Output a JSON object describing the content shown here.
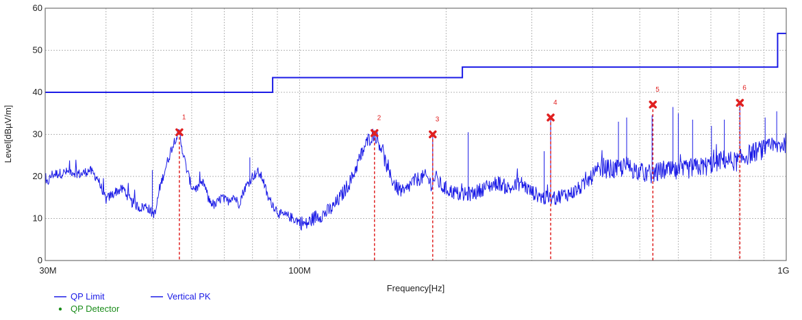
{
  "chart_data": {
    "type": "line",
    "xlabel": "Frequency[Hz]",
    "ylabel": "Level[dBµV/m]",
    "x_scale": "log",
    "xlim": [
      30000000,
      1000000000
    ],
    "ylim": [
      0,
      60
    ],
    "grid": true,
    "x_ticks": [
      {
        "value": 30000000,
        "label": "30M"
      },
      {
        "value": 100000000,
        "label": "100M"
      },
      {
        "value": 1000000000,
        "label": "1G"
      }
    ],
    "y_ticks": [
      {
        "value": 0,
        "label": "0"
      },
      {
        "value": 10,
        "label": "10"
      },
      {
        "value": 20,
        "label": "20"
      },
      {
        "value": 30,
        "label": "30"
      },
      {
        "value": 40,
        "label": "40"
      },
      {
        "value": 50,
        "label": "50"
      },
      {
        "value": 60,
        "label": "60"
      }
    ],
    "limit_line": {
      "name": "QP Limit",
      "color": "#1a1ae6",
      "points": [
        [
          30000000,
          40
        ],
        [
          88000000,
          40
        ],
        [
          88000000,
          43.5
        ],
        [
          216000000,
          43.5
        ],
        [
          216000000,
          46
        ],
        [
          960000000,
          46
        ],
        [
          960000000,
          54
        ],
        [
          1000000000,
          54
        ]
      ]
    },
    "trace": {
      "name": "Vertical PK",
      "color": "#1a1ae6",
      "points": [
        [
          30000000,
          17.5
        ],
        [
          31000000,
          20.5
        ],
        [
          32500000,
          20.8
        ],
        [
          34000000,
          21.2
        ],
        [
          35500000,
          20.5
        ],
        [
          37000000,
          21.5
        ],
        [
          38500000,
          19.5
        ],
        [
          39000000,
          17.5
        ],
        [
          40000000,
          14.5
        ],
        [
          42000000,
          16.5
        ],
        [
          43500000,
          17.0
        ],
        [
          45000000,
          14.0
        ],
        [
          47000000,
          12.5
        ],
        [
          48500000,
          13.0
        ],
        [
          49500000,
          11.5
        ],
        [
          50500000,
          11.0
        ],
        [
          51500000,
          17.0
        ],
        [
          53000000,
          22.0
        ],
        [
          54500000,
          26.5
        ],
        [
          55500000,
          29.0
        ],
        [
          56600000,
          30.5
        ],
        [
          57500000,
          26.0
        ],
        [
          58500000,
          22.0
        ],
        [
          60000000,
          17.5
        ],
        [
          62000000,
          17.0
        ],
        [
          63500000,
          18.5
        ],
        [
          65000000,
          14.5
        ],
        [
          67000000,
          13.0
        ],
        [
          69000000,
          15.0
        ],
        [
          71000000,
          14.0
        ],
        [
          73000000,
          15.5
        ],
        [
          75000000,
          13.5
        ],
        [
          77000000,
          17.0
        ],
        [
          80000000,
          20.0
        ],
        [
          82000000,
          21.0
        ],
        [
          84000000,
          19.5
        ],
        [
          86000000,
          15.0
        ],
        [
          88500000,
          13.0
        ],
        [
          91000000,
          11.0
        ],
        [
          95000000,
          10.5
        ],
        [
          99000000,
          9.5
        ],
        [
          103000000,
          8.5
        ],
        [
          108000000,
          10.5
        ],
        [
          112000000,
          11.0
        ],
        [
          117000000,
          12.5
        ],
        [
          122000000,
          15.5
        ],
        [
          128000000,
          19.5
        ],
        [
          133000000,
          24.5
        ],
        [
          138000000,
          28.5
        ],
        [
          142500000,
          30.3
        ],
        [
          147000000,
          27.0
        ],
        [
          152000000,
          21.0
        ],
        [
          158000000,
          17.5
        ],
        [
          164000000,
          16.0
        ],
        [
          170000000,
          18.5
        ],
        [
          176000000,
          19.5
        ],
        [
          182000000,
          20.0
        ],
        [
          187000000,
          18.0
        ],
        [
          190000000,
          20.0
        ],
        [
          196000000,
          17.5
        ],
        [
          205000000,
          16.5
        ],
        [
          215000000,
          15.5
        ],
        [
          228000000,
          16.0
        ],
        [
          242000000,
          17.5
        ],
        [
          256000000,
          18.5
        ],
        [
          270000000,
          17.0
        ],
        [
          285000000,
          18.5
        ],
        [
          298000000,
          16.5
        ],
        [
          315000000,
          15.0
        ],
        [
          330000000,
          14.5
        ],
        [
          345000000,
          15.5
        ],
        [
          362000000,
          16.0
        ],
        [
          380000000,
          17.5
        ],
        [
          400000000,
          20.0
        ],
        [
          420000000,
          22.0
        ],
        [
          445000000,
          21.5
        ],
        [
          470000000,
          22.5
        ],
        [
          500000000,
          21.0
        ],
        [
          530000000,
          20.5
        ],
        [
          560000000,
          21.5
        ],
        [
          600000000,
          21.0
        ],
        [
          640000000,
          22.0
        ],
        [
          690000000,
          22.5
        ],
        [
          740000000,
          24.0
        ],
        [
          790000000,
          23.5
        ],
        [
          830000000,
          25.0
        ],
        [
          870000000,
          26.0
        ],
        [
          910000000,
          26.5
        ],
        [
          950000000,
          27.0
        ],
        [
          1000000000,
          28.0
        ]
      ]
    },
    "spurs": [
      [
        49800000,
        21.5
      ],
      [
        79000000,
        24.5
      ],
      [
        134000000,
        24.0
      ],
      [
        187700000,
        30.0
      ],
      [
        222000000,
        30.5
      ],
      [
        318000000,
        26.0
      ],
      [
        328000000,
        34.0
      ],
      [
        452000000,
        33.0
      ],
      [
        470000000,
        34.0
      ],
      [
        530000000,
        34.5
      ],
      [
        585000000,
        36.5
      ],
      [
        600000000,
        35.0
      ],
      [
        642000000,
        33.5
      ],
      [
        702000000,
        32.0
      ],
      [
        746000000,
        33.5
      ],
      [
        803000000,
        37.5
      ],
      [
        905000000,
        34.0
      ],
      [
        956000000,
        35.5
      ]
    ],
    "markers": [
      {
        "label": "1",
        "freq": 56600000,
        "level": 30.5
      },
      {
        "label": "2",
        "freq": 142500000,
        "level": 30.3
      },
      {
        "label": "3",
        "freq": 187700000,
        "level": 30.0
      },
      {
        "label": "4",
        "freq": 328000000,
        "level": 34.0
      },
      {
        "label": "5",
        "freq": 532000000,
        "level": 37.1
      },
      {
        "label": "6",
        "freq": 803000000,
        "level": 37.5
      }
    ],
    "marker_color": "#e02020",
    "legend": [
      {
        "label": "QP Limit",
        "color": "#1a1ae6",
        "symbol": "line"
      },
      {
        "label": "Vertical PK",
        "color": "#1a1ae6",
        "symbol": "line"
      },
      {
        "label": "QP Detector",
        "color": "#1a8c1a",
        "symbol": "dot"
      }
    ]
  }
}
